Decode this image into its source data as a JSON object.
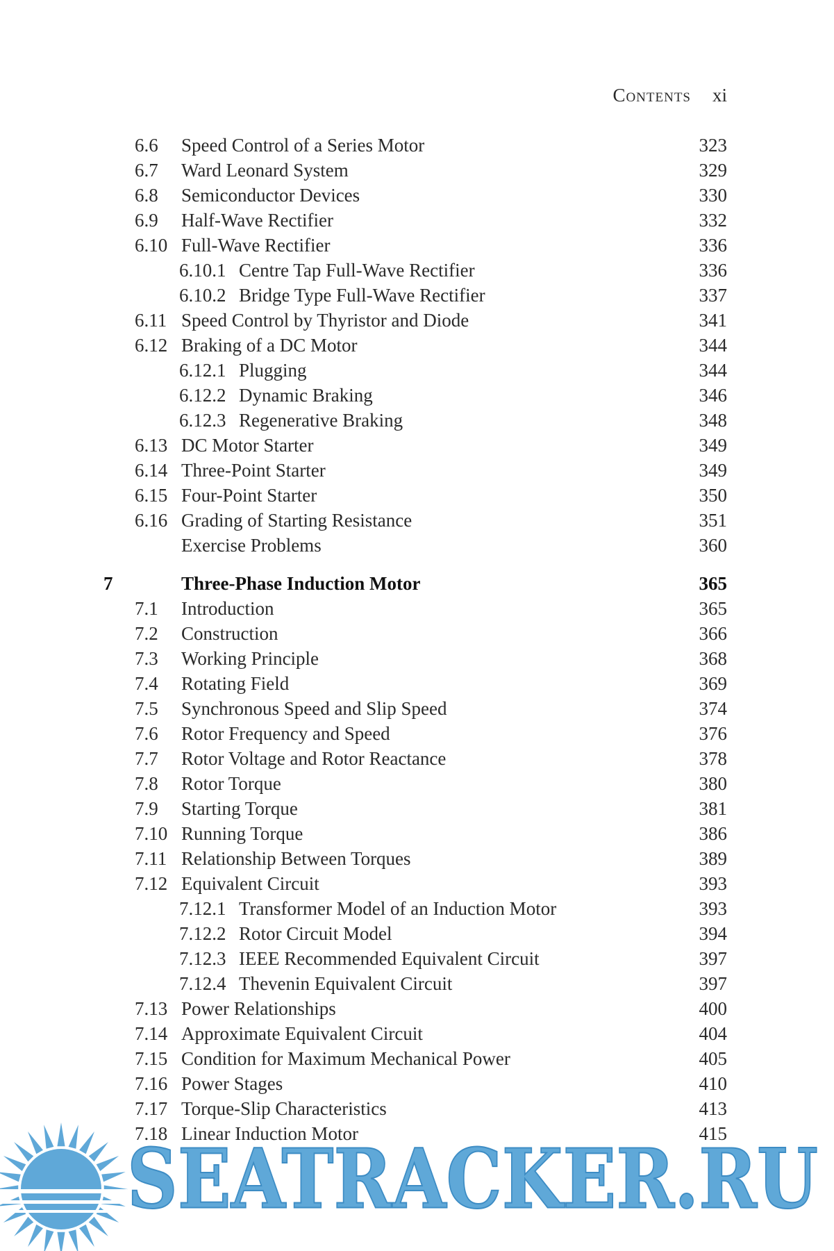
{
  "header": {
    "title": "Contents",
    "page": "xi"
  },
  "entries": [
    {
      "level": "section",
      "number": "6.6",
      "title": "Speed Control of a Series Motor",
      "page": "323"
    },
    {
      "level": "section",
      "number": "6.7",
      "title": "Ward Leonard System",
      "page": "329"
    },
    {
      "level": "section",
      "number": "6.8",
      "title": "Semiconductor Devices",
      "page": "330"
    },
    {
      "level": "section",
      "number": "6.9",
      "title": "Half-Wave Rectifier",
      "page": "332"
    },
    {
      "level": "section",
      "number": "6.10",
      "title": "Full-Wave Rectifier",
      "page": "336"
    },
    {
      "level": "subsection",
      "number": "6.10.1",
      "title": "Centre Tap Full-Wave Rectifier",
      "page": "336"
    },
    {
      "level": "subsection",
      "number": "6.10.2",
      "title": "Bridge Type Full-Wave Rectifier",
      "page": "337"
    },
    {
      "level": "section",
      "number": "6.11",
      "title": "Speed Control by Thyristor and Diode",
      "page": "341"
    },
    {
      "level": "section",
      "number": "6.12",
      "title": "Braking of a DC Motor",
      "page": "344"
    },
    {
      "level": "subsection",
      "number": "6.12.1",
      "title": "Plugging",
      "page": "344"
    },
    {
      "level": "subsection",
      "number": "6.12.2",
      "title": "Dynamic Braking",
      "page": "346"
    },
    {
      "level": "subsection",
      "number": "6.12.3",
      "title": "Regenerative Braking",
      "page": "348"
    },
    {
      "level": "section",
      "number": "6.13",
      "title": "DC Motor Starter",
      "page": "349"
    },
    {
      "level": "section",
      "number": "6.14",
      "title": "Three-Point Starter",
      "page": "349"
    },
    {
      "level": "section",
      "number": "6.15",
      "title": "Four-Point Starter",
      "page": "350"
    },
    {
      "level": "section",
      "number": "6.16",
      "title": "Grading of Starting Resistance",
      "page": "351"
    },
    {
      "level": "section",
      "title": "Exercise Problems",
      "page": "360"
    },
    {
      "level": "chapter",
      "number": "7",
      "title": "Three-Phase Induction Motor",
      "page": "365"
    },
    {
      "level": "section",
      "number": "7.1",
      "title": "Introduction",
      "page": "365"
    },
    {
      "level": "section",
      "number": "7.2",
      "title": "Construction",
      "page": "366"
    },
    {
      "level": "section",
      "number": "7.3",
      "title": "Working Principle",
      "page": "368"
    },
    {
      "level": "section",
      "number": "7.4",
      "title": "Rotating Field",
      "page": "369"
    },
    {
      "level": "section",
      "number": "7.5",
      "title": "Synchronous Speed and Slip Speed",
      "page": "374"
    },
    {
      "level": "section",
      "number": "7.6",
      "title": "Rotor Frequency and Speed",
      "page": "376"
    },
    {
      "level": "section",
      "number": "7.7",
      "title": "Rotor Voltage and Rotor Reactance",
      "page": "378"
    },
    {
      "level": "section",
      "number": "7.8",
      "title": "Rotor Torque",
      "page": "380"
    },
    {
      "level": "section",
      "number": "7.9",
      "title": "Starting Torque",
      "page": "381"
    },
    {
      "level": "section",
      "number": "7.10",
      "title": "Running Torque",
      "page": "386"
    },
    {
      "level": "section",
      "number": "7.11",
      "title": "Relationship Between Torques",
      "page": "389"
    },
    {
      "level": "section",
      "number": "7.12",
      "title": "Equivalent Circuit",
      "page": "393"
    },
    {
      "level": "subsection",
      "number": "7.12.1",
      "title": "Transformer Model of an Induction Motor",
      "page": "393"
    },
    {
      "level": "subsection",
      "number": "7.12.2",
      "title": "Rotor Circuit Model",
      "page": "394"
    },
    {
      "level": "subsection",
      "number": "7.12.3",
      "title": "IEEE Recommended Equivalent Circuit",
      "page": "397"
    },
    {
      "level": "subsection",
      "number": "7.12.4",
      "title": "Thevenin Equivalent Circuit",
      "page": "397"
    },
    {
      "level": "section",
      "number": "7.13",
      "title": "Power Relationships",
      "page": "400"
    },
    {
      "level": "section",
      "number": "7.14",
      "title": "Approximate Equivalent Circuit",
      "page": "404"
    },
    {
      "level": "section",
      "number": "7.15",
      "title": "Condition for Maximum Mechanical Power",
      "page": "405"
    },
    {
      "level": "section",
      "number": "7.16",
      "title": "Power Stages",
      "page": "410"
    },
    {
      "level": "section",
      "number": "7.17",
      "title": "Torque-Slip Characteristics",
      "page": "413"
    },
    {
      "level": "section",
      "number": "7.18",
      "title": "Linear Induction Motor",
      "page": "415"
    }
  ],
  "watermark": "SEATRACKER.RU"
}
